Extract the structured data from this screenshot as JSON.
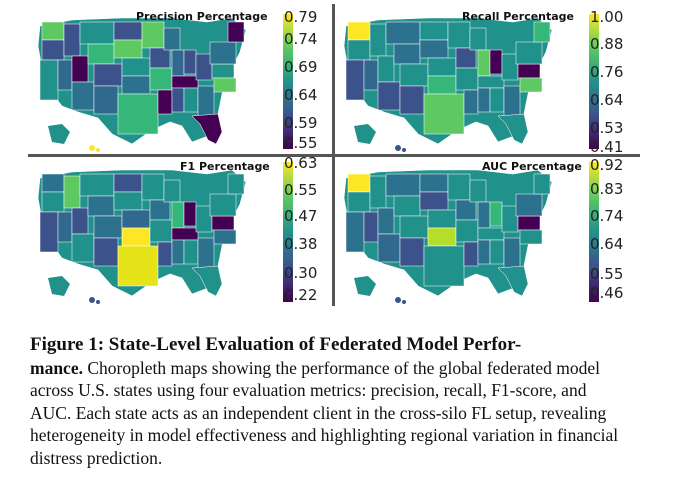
{
  "figure": {
    "panels": [
      {
        "title": "Precision Percentage",
        "ticks": [
          "0.79",
          "0.74",
          "0.69",
          "0.64",
          "0.59",
          "0.55"
        ]
      },
      {
        "title": "Recall Percentage",
        "ticks": [
          "1.00",
          "0.88",
          "0.76",
          "0.64",
          "0.53",
          "0.41"
        ]
      },
      {
        "title": "F1 Percentage",
        "ticks": [
          "0.63",
          "0.55",
          "0.47",
          "0.38",
          "0.30",
          "0.22"
        ]
      },
      {
        "title": "AUC Percentage",
        "ticks": [
          "0.92",
          "0.83",
          "0.74",
          "0.64",
          "0.55",
          "0.46"
        ]
      }
    ],
    "colormap": [
      "#440154",
      "#3b528b",
      "#21918c",
      "#5ec962",
      "#fde725"
    ]
  },
  "caption": {
    "title_line": "Figure 1: State-Level Evaluation of Federated Model Perfor-",
    "title_cont": "mance.",
    "body": " Choropleth maps showing the performance of the global federated model across U.S. states using four evaluation metrics: precision, recall, F1-score, and AUC. Each state acts as an independent client in the cross-silo FL setup, revealing heterogeneity in model effectiveness and highlighting regional variation in financial distress prediction."
  }
}
